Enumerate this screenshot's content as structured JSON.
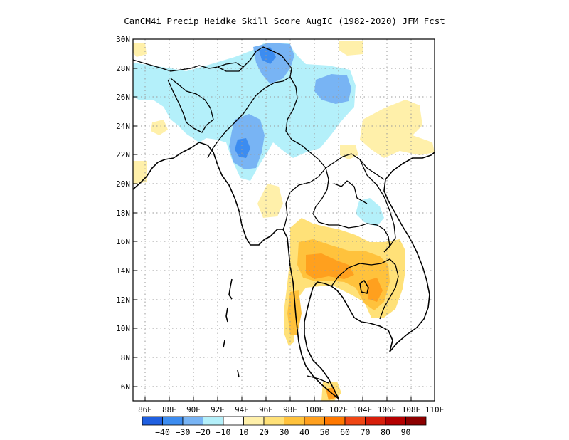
{
  "title": "CanCM4i Precip Heidke Skill Score AugIC (1982-2020) JFM Fcst",
  "map": {
    "lon_range": [
      85,
      110
    ],
    "lat_range": [
      5,
      30
    ],
    "lon_ticks": [
      "86E",
      "88E",
      "90E",
      "92E",
      "94E",
      "96E",
      "98E",
      "100E",
      "102E",
      "104E",
      "106E",
      "108E",
      "110E"
    ],
    "lat_ticks": [
      "30N",
      "28N",
      "26N",
      "24N",
      "22N",
      "20N",
      "18N",
      "16N",
      "14N",
      "12N",
      "10N",
      "8N",
      "6N"
    ],
    "gridlines": "dotted"
  },
  "colorbar": {
    "labels": [
      "-40",
      "-30",
      "-20",
      "-10",
      "10",
      "20",
      "30",
      "40",
      "50",
      "60",
      "70",
      "80",
      "90"
    ],
    "colors": [
      "#1f5fe0",
      "#3c8cf0",
      "#78b4f4",
      "#b4f0fa",
      "#ffffff",
      "#fff0aa",
      "#ffe178",
      "#ffc23c",
      "#ffa01e",
      "#ff7800",
      "#f04614",
      "#d71e0a",
      "#b40000",
      "#8c0000"
    ]
  },
  "legend_colors": {
    "blue_dark": "#3c8cf0",
    "blue_mid": "#78b4f4",
    "blue_light": "#b4f0fa",
    "yellow_light": "#fff0aa",
    "yellow": "#ffe178",
    "orange_light": "#ffc23c",
    "orange": "#ffa01e"
  }
}
